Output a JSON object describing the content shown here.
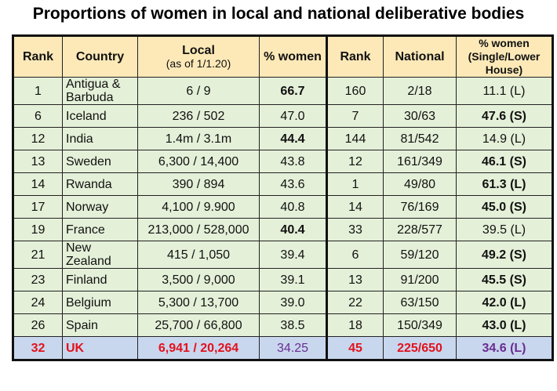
{
  "title": "Proportions of women in local and national deliberative bodies",
  "headers": {
    "rank_local": "Rank",
    "country": "Country",
    "local": "Local",
    "local_sub": "(as of 1/1.20)",
    "pct_women_local": "% women",
    "rank_national": "Rank",
    "national": "National",
    "pct_women_national": "% women (Single/Lower House)"
  },
  "rows": [
    {
      "rank": "1",
      "country": "Antigua & Barbuda",
      "local": "6 / 9",
      "pct": "66.7",
      "pct_bold": true,
      "nrank": "160",
      "national": "2/18",
      "npct": "11.1 (L)",
      "npct_bold": false
    },
    {
      "rank": "6",
      "country": "Iceland",
      "local": "236 / 502",
      "pct": "47.0",
      "pct_bold": false,
      "nrank": "7",
      "national": "30/63",
      "npct": "47.6 (S)",
      "npct_bold": true
    },
    {
      "rank": "12",
      "country": "India",
      "local": "1.4m / 3.1m",
      "pct": "44.4",
      "pct_bold": true,
      "nrank": "144",
      "national": "81/542",
      "npct": "14.9 (L)",
      "npct_bold": false
    },
    {
      "rank": "13",
      "country": "Sweden",
      "local": "6,300 / 14,400",
      "pct": "43.8",
      "pct_bold": false,
      "nrank": "12",
      "national": "161/349",
      "npct": "46.1 (S)",
      "npct_bold": true
    },
    {
      "rank": "14",
      "country": "Rwanda",
      "local": "390 / 894",
      "pct": "43.6",
      "pct_bold": false,
      "nrank": "1",
      "national": "49/80",
      "npct": "61.3 (L)",
      "npct_bold": true
    },
    {
      "rank": "17",
      "country": "Norway",
      "local": "4,100 / 9.900",
      "pct": "40.8",
      "pct_bold": false,
      "nrank": "14",
      "national": "76/169",
      "npct": "45.0 (S)",
      "npct_bold": true
    },
    {
      "rank": "19",
      "country": "France",
      "local": "213,000 / 528,000",
      "pct": "40.4",
      "pct_bold": true,
      "nrank": "33",
      "national": "228/577",
      "npct": "39.5 (L)",
      "npct_bold": false
    },
    {
      "rank": "21",
      "country": "New Zealand",
      "local": "415 / 1,050",
      "pct": "39.4",
      "pct_bold": false,
      "nrank": "6",
      "national": "59/120",
      "npct": "49.2 (S)",
      "npct_bold": true
    },
    {
      "rank": "23",
      "country": "Finland",
      "local": "3,500 / 9,000",
      "pct": "39.1",
      "pct_bold": false,
      "nrank": "13",
      "national": "91/200",
      "npct": "45.5 (S)",
      "npct_bold": true
    },
    {
      "rank": "24",
      "country": "Belgium",
      "local": "5,300 / 13,700",
      "pct": "39.0",
      "pct_bold": false,
      "nrank": "22",
      "national": "63/150",
      "npct": "42.0 (L)",
      "npct_bold": true
    },
    {
      "rank": "26",
      "country": "Spain",
      "local": "25,700 / 66,800",
      "pct": "38.5",
      "pct_bold": false,
      "nrank": "18",
      "national": "150/349",
      "npct": "43.0 (L)",
      "npct_bold": true
    },
    {
      "rank": "32",
      "country": "UK",
      "local": "6,941 / 20,264",
      "pct": "34.25",
      "pct_bold": false,
      "nrank": "45",
      "national": "225/650",
      "npct": "34.6 (L)",
      "npct_bold": true,
      "highlight": true
    }
  ]
}
